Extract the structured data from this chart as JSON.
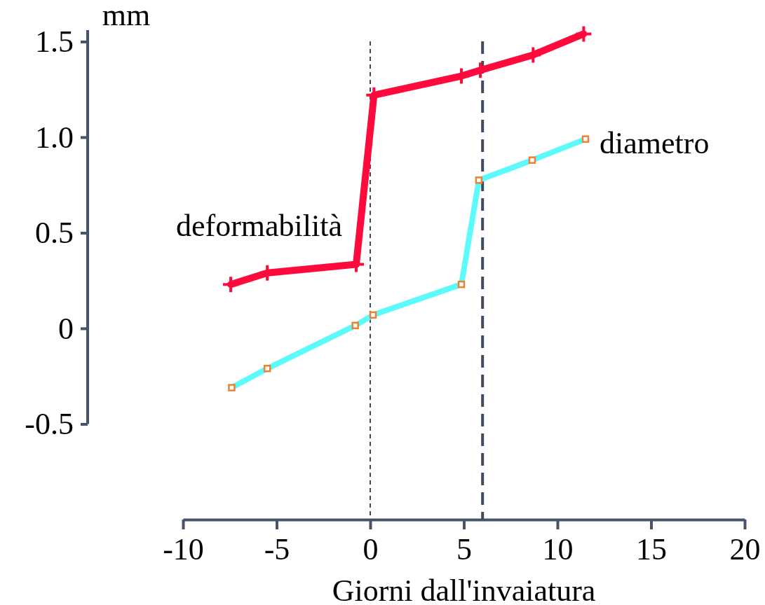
{
  "chart_data": {
    "type": "line",
    "xlabel": "Giorni dall'invaiatura",
    "ylabel": "mm",
    "xlim": [
      -10,
      20
    ],
    "xticks": [
      -10,
      -5,
      0,
      5,
      10,
      15,
      20
    ],
    "ylim": [
      -1.0,
      1.56
    ],
    "yticks": [
      -0.5,
      0,
      {
        "value": 0.5,
        "label": "0.5"
      },
      {
        "value": 1,
        "label": "1.0"
      },
      1.5
    ],
    "grid": false,
    "line_style": "solid",
    "series": [
      {
        "name": "deformabilità",
        "color": "#ff0a3c",
        "marker": "cross",
        "x": [
          -7.45,
          -5.5,
          -0.75,
          0.2,
          4.87,
          5.88,
          8.7,
          11.4
        ],
        "values": [
          0.23,
          0.29,
          0.335,
          1.22,
          1.32,
          1.35,
          1.43,
          1.54
        ]
      },
      {
        "name": "diametro",
        "color": "#5cfafa",
        "marker": "square",
        "x": [
          -7.4,
          -5.5,
          -0.8,
          0.15,
          4.87,
          5.8,
          8.65,
          11.5
        ],
        "values": [
          -0.31,
          -0.21,
          0.015,
          0.07,
          0.23,
          0.775,
          0.88,
          0.99
        ]
      }
    ],
    "ref_lines": [
      {
        "axis": "x",
        "value": 0,
        "line_style": "dotted",
        "color": "#3d4a60"
      },
      {
        "axis": "x",
        "value": 6,
        "line_style": "dashed",
        "color": "#3d4a60"
      }
    ]
  }
}
